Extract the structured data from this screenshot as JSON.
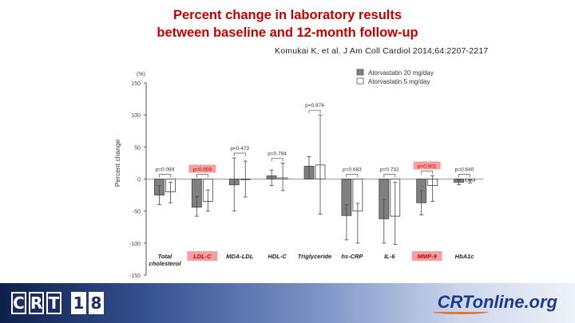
{
  "title_line1": "Percent change in laboratory results",
  "title_line2": "between baseline and 12-month follow-up",
  "citation": "Komukai K, et al. J Am Coll Cardiol 2014;64:2207-2217",
  "footer": {
    "left_logo": [
      "C",
      "R",
      "T",
      "1",
      "8"
    ],
    "right_logo_main": "CRTonline",
    "right_logo_suffix": ".org"
  },
  "colors": {
    "title": "#c00000",
    "bar_atorva20": "#808080",
    "bar_atorva5": "#ffffff",
    "highlight": "#f4a0a0",
    "highlight_text": "#c00000"
  },
  "chart_data": {
    "type": "bar",
    "title": "",
    "xlabel": "",
    "ylabel": "Percent change",
    "yunit": "(%)",
    "ylim": [
      -150,
      150
    ],
    "yticks": [
      150,
      100,
      50,
      0,
      -50,
      -100,
      -150
    ],
    "categories": [
      "Total cholesterol",
      "LDL-C",
      "MDA-LDL",
      "HDL-C",
      "Triglyceride",
      "hs-CRP",
      "IL-6",
      "MMP-9",
      "HbA1c"
    ],
    "highlighted_categories": [
      "LDL-C",
      "MMP-9"
    ],
    "legend_position": "top-right",
    "series": [
      {
        "name": "Atorvastatin 20 mg/day",
        "values": [
          -25,
          -44,
          -9,
          5,
          20,
          -57,
          -62,
          -37,
          -5
        ],
        "error_high": [
          -10,
          -27,
          33,
          14,
          35,
          -40,
          -32,
          -18,
          -1
        ],
        "error_low": [
          -40,
          -58,
          -50,
          -10,
          0,
          -95,
          -100,
          -56,
          -9
        ]
      },
      {
        "name": "Atorvastatin 5 mg/day",
        "values": [
          -20,
          -35,
          0,
          2,
          22,
          -50,
          -58,
          -10,
          -3
        ],
        "error_high": [
          -5,
          -17,
          28,
          25,
          100,
          -38,
          -5,
          5,
          -1
        ],
        "error_low": [
          -37,
          -50,
          -28,
          -18,
          -55,
          -100,
          -102,
          -35,
          -6
        ]
      }
    ],
    "p_values": [
      "p=0.089",
      "p=0.009",
      "p=0.473",
      "p=0.784",
      "p=0.974",
      "p=0.683",
      "p=0.732",
      "p<0.001",
      "p=0.640"
    ],
    "highlighted_p_values": [
      "p=0.009",
      "p<0.001"
    ]
  }
}
